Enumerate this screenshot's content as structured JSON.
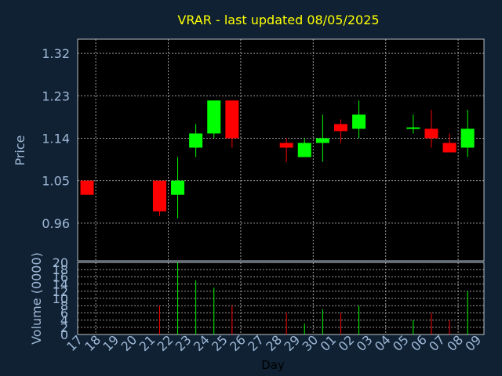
{
  "chart_data": {
    "type": "candlestick",
    "title": "VRAR - last updated 08/05/2025",
    "xlabel": "Day",
    "price_label": "Price",
    "volume_label": "Volume (0000)",
    "price_ticks": [
      "1.32",
      "1.23",
      "1.14",
      "1.05",
      "0.96"
    ],
    "price_tick_values": [
      1.32,
      1.23,
      1.14,
      1.05,
      0.96
    ],
    "price_ylim": [
      0.88,
      1.35
    ],
    "volume_ticks": [
      "20",
      "18",
      "16",
      "14",
      "12",
      "10",
      "8",
      "6",
      "4",
      "2",
      "0"
    ],
    "volume_tick_values": [
      20,
      18,
      16,
      14,
      12,
      10,
      8,
      6,
      4,
      2,
      0
    ],
    "volume_ylim": [
      0,
      20
    ],
    "x_ticks": [
      "17",
      "18",
      "19",
      "20",
      "21",
      "22",
      "23",
      "24",
      "25",
      "26",
      "27",
      "28",
      "29",
      "30",
      "01",
      "02",
      "03",
      "04",
      "05",
      "06",
      "07",
      "08",
      "09"
    ],
    "grid": true,
    "colors": {
      "up": "#00ff00",
      "down": "#ff0000",
      "background": "#0f2133",
      "plot": "#000000",
      "grid": "#cccccc",
      "title": "#ffff00",
      "text": "#9fb8d6"
    },
    "candles": [
      {
        "day": "17",
        "open": 1.05,
        "close": 1.02,
        "high": 1.05,
        "low": 1.02,
        "volume": 0
      },
      {
        "day": "21",
        "open": 1.05,
        "close": 0.985,
        "high": 1.05,
        "low": 0.975,
        "volume": 8
      },
      {
        "day": "22",
        "open": 1.02,
        "close": 1.05,
        "high": 1.1,
        "low": 0.97,
        "volume": 20
      },
      {
        "day": "23",
        "open": 1.12,
        "close": 1.15,
        "high": 1.17,
        "low": 1.1,
        "volume": 15
      },
      {
        "day": "24",
        "open": 1.15,
        "close": 1.22,
        "high": 1.22,
        "low": 1.14,
        "volume": 13
      },
      {
        "day": "25",
        "open": 1.22,
        "close": 1.14,
        "high": 1.22,
        "low": 1.12,
        "volume": 8
      },
      {
        "day": "28",
        "open": 1.13,
        "close": 1.12,
        "high": 1.14,
        "low": 1.09,
        "volume": 6
      },
      {
        "day": "29",
        "open": 1.1,
        "close": 1.13,
        "high": 1.14,
        "low": 1.1,
        "volume": 3
      },
      {
        "day": "30",
        "open": 1.13,
        "close": 1.14,
        "high": 1.19,
        "low": 1.09,
        "volume": 7
      },
      {
        "day": "01",
        "open": 1.17,
        "close": 1.155,
        "high": 1.18,
        "low": 1.13,
        "volume": 6
      },
      {
        "day": "02",
        "open": 1.16,
        "close": 1.19,
        "high": 1.22,
        "low": 1.14,
        "volume": 8
      },
      {
        "day": "05",
        "open": 1.16,
        "close": 1.163,
        "high": 1.19,
        "low": 1.15,
        "volume": 4
      },
      {
        "day": "06",
        "open": 1.16,
        "close": 1.14,
        "high": 1.2,
        "low": 1.12,
        "volume": 6
      },
      {
        "day": "07",
        "open": 1.13,
        "close": 1.11,
        "high": 1.15,
        "low": 1.11,
        "volume": 4
      },
      {
        "day": "08",
        "open": 1.12,
        "close": 1.16,
        "high": 1.2,
        "low": 1.1,
        "volume": 12
      }
    ]
  }
}
